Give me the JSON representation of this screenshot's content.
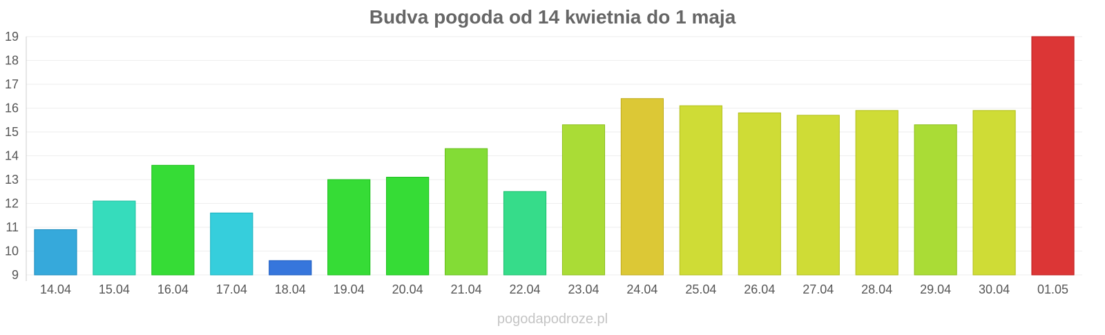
{
  "chart_data": {
    "type": "bar",
    "title": "Budva pogoda od 14 kwietnia do 1 maja",
    "xlabel": "",
    "ylabel": "",
    "ylim": [
      9,
      19
    ],
    "yticks": [
      9,
      10,
      11,
      12,
      13,
      14,
      15,
      16,
      17,
      18,
      19
    ],
    "grid": true,
    "legend": "none",
    "categories": [
      "14.04",
      "15.04",
      "16.04",
      "17.04",
      "18.04",
      "19.04",
      "20.04",
      "21.04",
      "22.04",
      "23.04",
      "24.04",
      "25.04",
      "26.04",
      "27.04",
      "28.04",
      "29.04",
      "30.04",
      "01.05"
    ],
    "values": [
      10.9,
      12.1,
      13.6,
      11.6,
      9.6,
      13.0,
      13.1,
      14.3,
      12.5,
      15.3,
      16.4,
      16.1,
      15.8,
      15.7,
      15.9,
      15.3,
      15.9,
      19.0
    ],
    "colors": [
      "#36a9db",
      "#36dcbc",
      "#36dc36",
      "#36cedc",
      "#3676dc",
      "#36dc36",
      "#36dc36",
      "#83dc36",
      "#36dc8a",
      "#aadc36",
      "#dcc836",
      "#cfdc36",
      "#cfdc36",
      "#cfdc36",
      "#cfdc36",
      "#aadc36",
      "#cfdc36",
      "#dc3636"
    ]
  },
  "watermark": "pogodapodroze.pl"
}
